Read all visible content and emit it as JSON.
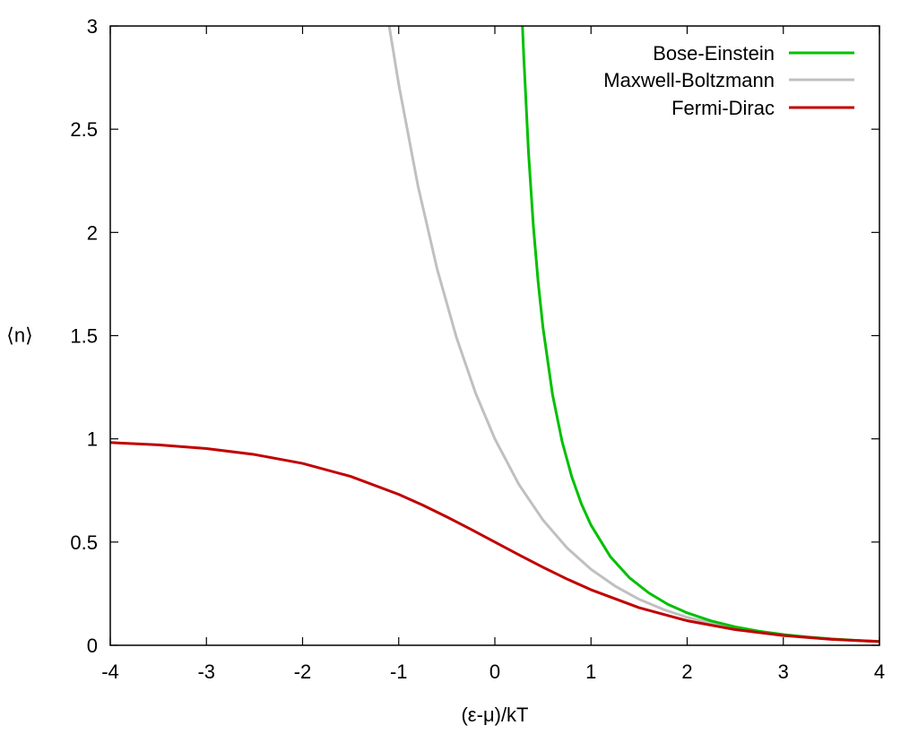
{
  "chart_data": {
    "type": "line",
    "title": "",
    "xlabel": "(ε-μ)/kT",
    "ylabel": "⟨n⟩",
    "xlim": [
      -4,
      4
    ],
    "ylim": [
      0,
      3
    ],
    "xticks": [
      "-4",
      "-3",
      "-2",
      "-1",
      "0",
      "1",
      "2",
      "3",
      "4"
    ],
    "yticks": [
      "0",
      "0.5",
      "1",
      "1.5",
      "2",
      "2.5",
      "3"
    ],
    "grid": false,
    "legend_position": "top-right",
    "series": [
      {
        "name": "Bose-Einstein",
        "color": "#00c000",
        "x": [
          0.287,
          0.3,
          0.35,
          0.4,
          0.45,
          0.5,
          0.6,
          0.7,
          0.8,
          0.9,
          1.0,
          1.2,
          1.4,
          1.6,
          1.8,
          2.0,
          2.25,
          2.5,
          2.75,
          3.0,
          3.25,
          3.5,
          3.75,
          4.0
        ],
        "y": [
          3.0,
          2.858,
          2.387,
          2.033,
          1.761,
          1.541,
          1.214,
          0.986,
          0.816,
          0.685,
          0.582,
          0.43,
          0.327,
          0.254,
          0.198,
          0.157,
          0.118,
          0.089,
          0.068,
          0.052,
          0.04,
          0.031,
          0.024,
          0.019
        ]
      },
      {
        "name": "Maxwell-Boltzmann",
        "color": "#c0c0c0",
        "x": [
          -1.099,
          -1.0,
          -0.8,
          -0.6,
          -0.4,
          -0.2,
          0.0,
          0.25,
          0.5,
          0.75,
          1.0,
          1.25,
          1.5,
          1.75,
          2.0,
          2.5,
          3.0,
          3.5,
          4.0
        ],
        "y": [
          3.0,
          2.718,
          2.226,
          1.822,
          1.492,
          1.221,
          1.0,
          0.779,
          0.607,
          0.472,
          0.368,
          0.287,
          0.223,
          0.174,
          0.135,
          0.082,
          0.05,
          0.03,
          0.018
        ]
      },
      {
        "name": "Fermi-Dirac",
        "color": "#c00000",
        "x": [
          -4.0,
          -3.5,
          -3.0,
          -2.5,
          -2.0,
          -1.5,
          -1.0,
          -0.75,
          -0.5,
          -0.25,
          0.0,
          0.25,
          0.5,
          0.75,
          1.0,
          1.5,
          2.0,
          2.5,
          3.0,
          3.5,
          4.0
        ],
        "y": [
          0.982,
          0.971,
          0.953,
          0.924,
          0.881,
          0.818,
          0.731,
          0.679,
          0.622,
          0.562,
          0.5,
          0.438,
          0.378,
          0.321,
          0.269,
          0.182,
          0.119,
          0.076,
          0.047,
          0.029,
          0.018
        ]
      }
    ]
  }
}
